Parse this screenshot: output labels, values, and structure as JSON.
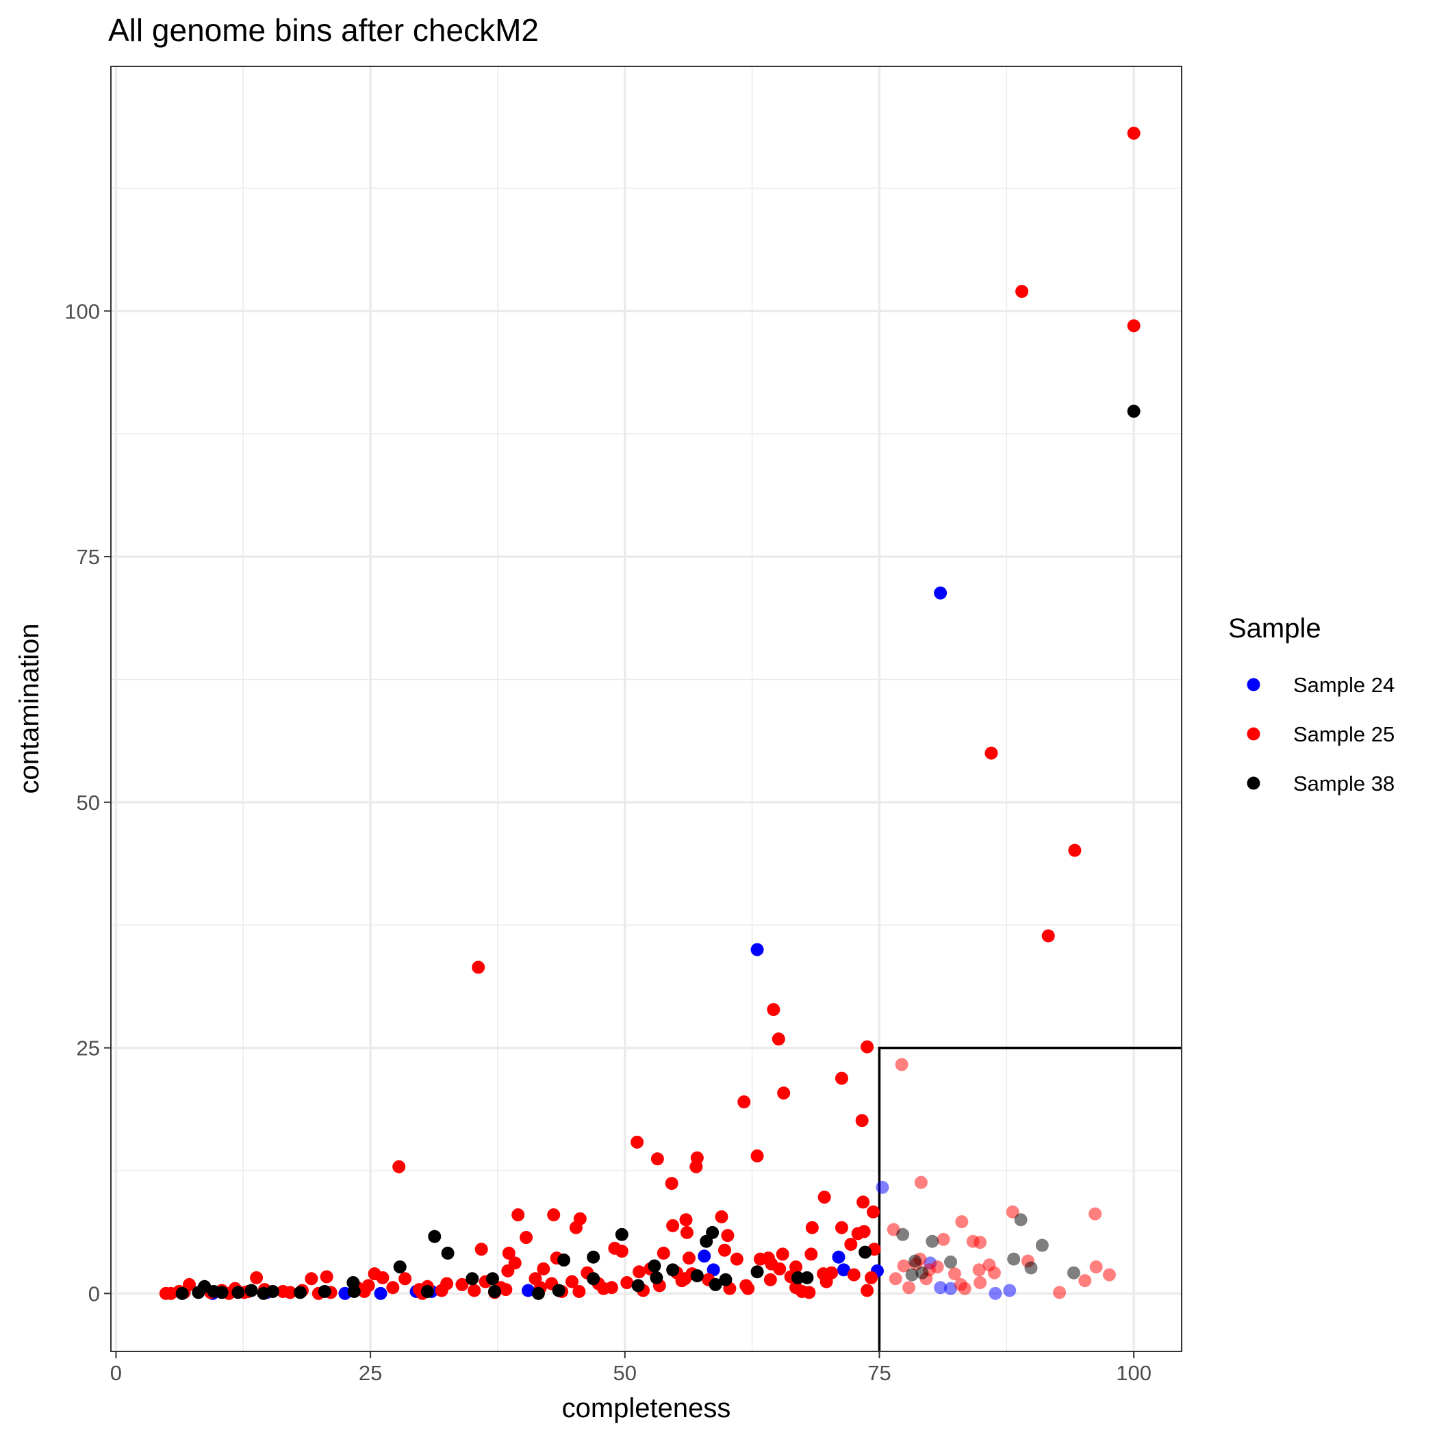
{
  "chart_data": {
    "type": "scatter",
    "title": "All genome bins after checkM2",
    "xlabel": "completeness",
    "ylabel": "contamination",
    "xlim": [
      -0.5,
      104.7
    ],
    "ylim": [
      -5.9,
      124.9
    ],
    "x_ticks": [
      0,
      25,
      50,
      75,
      100
    ],
    "x_tick_labels": [
      "0",
      "25",
      "50",
      "75",
      "100"
    ],
    "y_ticks": [
      0,
      25,
      50,
      75,
      100
    ],
    "y_tick_labels": [
      "0",
      "25",
      "50",
      "75",
      "100"
    ],
    "grid": true,
    "legend_position": "right",
    "legend": {
      "title": "Sample",
      "entries": [
        {
          "label": "Sample 24",
          "color": "#0000ff"
        },
        {
          "label": "Sample 25",
          "color": "#ff0000"
        },
        {
          "label": "Sample 38",
          "color": "#000000"
        }
      ]
    },
    "highlight_region": {
      "x": [
        75,
        104.7
      ],
      "y": [
        -5.9,
        25
      ]
    },
    "highlight_note": "points inside the box are drawn semi-transparent",
    "series": [
      {
        "name": "Sample 24",
        "color": "#0000ff",
        "points": [
          [
            81,
            71.3
          ],
          [
            63,
            35
          ],
          [
            75.3,
            10.8
          ],
          [
            71,
            3.7
          ],
          [
            71.5,
            2.4
          ],
          [
            74.8,
            2.3
          ],
          [
            57.8,
            3.8
          ],
          [
            58.7,
            2.4
          ],
          [
            80,
            3.1
          ],
          [
            81,
            0.6
          ],
          [
            86.4,
            0.0
          ],
          [
            87.8,
            0.3
          ],
          [
            82,
            0.5
          ],
          [
            40.5,
            0.3
          ],
          [
            31,
            0.2
          ],
          [
            26,
            0.0
          ],
          [
            22.5,
            0.0
          ],
          [
            14.8,
            0.1
          ],
          [
            9.5,
            0.0
          ],
          [
            29.5,
            0.2
          ]
        ]
      },
      {
        "name": "Sample 25",
        "color": "#ff0000",
        "points": [
          [
            100,
            118.1
          ],
          [
            89,
            102
          ],
          [
            100,
            98.5
          ],
          [
            86,
            55
          ],
          [
            94.2,
            45.1
          ],
          [
            91.6,
            36.4
          ],
          [
            35.6,
            33.2
          ],
          [
            64.6,
            28.9
          ],
          [
            65.1,
            25.9
          ],
          [
            73.8,
            25.1
          ],
          [
            71.3,
            21.9
          ],
          [
            65.6,
            20.4
          ],
          [
            61.7,
            19.5
          ],
          [
            77.2,
            23.3
          ],
          [
            73.3,
            17.6
          ],
          [
            51.2,
            15.4
          ],
          [
            53.2,
            13.7
          ],
          [
            57.1,
            13.8
          ],
          [
            57,
            12.9
          ],
          [
            63,
            14.0
          ],
          [
            27.8,
            12.9
          ],
          [
            54.6,
            11.2
          ],
          [
            79.1,
            11.3
          ],
          [
            69.6,
            9.8
          ],
          [
            73.4,
            9.3
          ],
          [
            74.4,
            8.3
          ],
          [
            39.5,
            8.0
          ],
          [
            43,
            8.0
          ],
          [
            45.6,
            7.6
          ],
          [
            56,
            7.5
          ],
          [
            59.5,
            7.8
          ],
          [
            88.1,
            8.3
          ],
          [
            96.2,
            8.1
          ],
          [
            83.1,
            7.3
          ],
          [
            45.2,
            6.7
          ],
          [
            54.7,
            6.9
          ],
          [
            56.1,
            6.2
          ],
          [
            60.1,
            5.9
          ],
          [
            40.3,
            5.7
          ],
          [
            68.4,
            6.7
          ],
          [
            71.3,
            6.7
          ],
          [
            72.9,
            6.1
          ],
          [
            73.5,
            6.3
          ],
          [
            76.4,
            6.5
          ],
          [
            81.3,
            5.5
          ],
          [
            84.2,
            5.3
          ],
          [
            84.9,
            5.2
          ],
          [
            72.2,
            5.0
          ],
          [
            74.5,
            4.5
          ],
          [
            35.9,
            4.5
          ],
          [
            38.6,
            4.1
          ],
          [
            43.3,
            3.6
          ],
          [
            49,
            4.6
          ],
          [
            49.7,
            4.3
          ],
          [
            53.8,
            4.1
          ],
          [
            56.3,
            3.6
          ],
          [
            59.8,
            4.4
          ],
          [
            61,
            3.5
          ],
          [
            63.3,
            3.5
          ],
          [
            64.1,
            3.6
          ],
          [
            64.4,
            3.0
          ],
          [
            65.5,
            4.0
          ],
          [
            66.8,
            2.7
          ],
          [
            68.3,
            4.0
          ],
          [
            69.5,
            2.0
          ],
          [
            70.3,
            2.1
          ],
          [
            72.5,
            1.9
          ],
          [
            74.2,
            1.6
          ],
          [
            76.6,
            1.5
          ],
          [
            77.4,
            2.8
          ],
          [
            78.6,
            3.0
          ],
          [
            79,
            3.5
          ],
          [
            79.9,
            2.4
          ],
          [
            80.7,
            2.7
          ],
          [
            82.4,
            2.0
          ],
          [
            84.8,
            2.4
          ],
          [
            85.8,
            2.9
          ],
          [
            86.3,
            2.1
          ],
          [
            89.6,
            3.3
          ],
          [
            96.3,
            2.7
          ],
          [
            97.6,
            1.9
          ],
          [
            95.2,
            1.3
          ],
          [
            84.9,
            1.1
          ],
          [
            83,
            0.9
          ],
          [
            79.6,
            1.5
          ],
          [
            77.9,
            0.6
          ],
          [
            83.4,
            0.5
          ],
          [
            92.7,
            0.1
          ],
          [
            39.2,
            3.1
          ],
          [
            38.5,
            2.3
          ],
          [
            42,
            2.5
          ],
          [
            46.3,
            2.1
          ],
          [
            51.4,
            2.2
          ],
          [
            52.5,
            2.5
          ],
          [
            55.1,
            2.1
          ],
          [
            56.6,
            2.0
          ],
          [
            58.2,
            1.4
          ],
          [
            55.6,
            1.3
          ],
          [
            50.2,
            1.1
          ],
          [
            47.4,
            1.0
          ],
          [
            42.8,
            1.0
          ],
          [
            44.8,
            1.2
          ],
          [
            41.2,
            1.5
          ],
          [
            37.8,
            0.6
          ],
          [
            36.3,
            1.2
          ],
          [
            34,
            0.9
          ],
          [
            32.5,
            1.0
          ],
          [
            30.6,
            0.7
          ],
          [
            28.4,
            1.5
          ],
          [
            26.2,
            1.6
          ],
          [
            25.4,
            2.0
          ],
          [
            24.8,
            0.8
          ],
          [
            20.7,
            1.7
          ],
          [
            19.2,
            1.5
          ],
          [
            13.8,
            1.6
          ],
          [
            11.7,
            0.5
          ],
          [
            7.2,
            0.9
          ],
          [
            8.6,
            0.5
          ],
          [
            62.1,
            0.5
          ],
          [
            60.3,
            0.5
          ],
          [
            68.1,
            0.1
          ],
          [
            67.4,
            0.2
          ],
          [
            66.8,
            0.6
          ],
          [
            64.3,
            1.4
          ],
          [
            73.8,
            0.3
          ],
          [
            51.8,
            0.3
          ],
          [
            48.7,
            0.6
          ],
          [
            45.5,
            0.2
          ],
          [
            41.7,
            0.6
          ],
          [
            38.3,
            0.4
          ],
          [
            32,
            0.3
          ],
          [
            29.8,
            0.4
          ],
          [
            27.2,
            0.6
          ],
          [
            24.4,
            0.2
          ],
          [
            21.1,
            0.1
          ],
          [
            18.3,
            0.3
          ],
          [
            16.4,
            0.2
          ],
          [
            14.6,
            0.4
          ],
          [
            12.6,
            0.1
          ],
          [
            10.4,
            0.3
          ],
          [
            9.3,
            0.1
          ],
          [
            6.7,
            0.1
          ],
          [
            5.4,
            0.0
          ],
          [
            4.9,
            0.0
          ],
          [
            6.2,
            0.2
          ],
          [
            11.1,
            0.0
          ],
          [
            13,
            0.2
          ],
          [
            17.1,
            0.1
          ],
          [
            19.9,
            0.0
          ],
          [
            23.7,
            0.6
          ],
          [
            30.1,
            0.0
          ],
          [
            35.2,
            0.3
          ],
          [
            37.2,
            0.1
          ],
          [
            43.8,
            0.2
          ],
          [
            47.9,
            0.5
          ],
          [
            53.4,
            0.8
          ],
          [
            55.9,
            1.5
          ],
          [
            61.9,
            0.8
          ],
          [
            65.2,
            2.5
          ],
          [
            66.3,
            1.7
          ],
          [
            69.8,
            1.2
          ]
        ]
      },
      {
        "name": "Sample 38",
        "color": "#000000",
        "points": [
          [
            100,
            89.8
          ],
          [
            88.9,
            7.5
          ],
          [
            77.3,
            6.0
          ],
          [
            80.2,
            5.3
          ],
          [
            91,
            4.9
          ],
          [
            82,
            3.2
          ],
          [
            78.5,
            3.3
          ],
          [
            88.2,
            3.5
          ],
          [
            89.9,
            2.6
          ],
          [
            94.1,
            2.1
          ],
          [
            78.2,
            1.9
          ],
          [
            79.2,
            2.1
          ],
          [
            31.3,
            5.8
          ],
          [
            49.7,
            6.0
          ],
          [
            58.6,
            6.2
          ],
          [
            58,
            5.3
          ],
          [
            32.6,
            4.1
          ],
          [
            44,
            3.4
          ],
          [
            46.9,
            3.7
          ],
          [
            52.9,
            2.8
          ],
          [
            54.7,
            2.4
          ],
          [
            57.1,
            1.8
          ],
          [
            53.1,
            1.6
          ],
          [
            46.9,
            1.5
          ],
          [
            37,
            1.5
          ],
          [
            35,
            1.5
          ],
          [
            27.9,
            2.7
          ],
          [
            23.3,
            1.1
          ],
          [
            63,
            2.2
          ],
          [
            67,
            1.6
          ],
          [
            67.9,
            1.6
          ],
          [
            59.9,
            1.4
          ],
          [
            73.6,
            4.2
          ],
          [
            51.3,
            0.8
          ],
          [
            58.9,
            0.9
          ],
          [
            43.5,
            0.3
          ],
          [
            41.5,
            0.0
          ],
          [
            37.2,
            0.2
          ],
          [
            30.6,
            0.2
          ],
          [
            23.4,
            0.2
          ],
          [
            20.5,
            0.2
          ],
          [
            18.1,
            0.1
          ],
          [
            15.4,
            0.2
          ],
          [
            13.3,
            0.3
          ],
          [
            12,
            0.1
          ],
          [
            10.4,
            0.1
          ],
          [
            9.6,
            0.2
          ],
          [
            8.7,
            0.7
          ],
          [
            8.1,
            0.1
          ],
          [
            6.5,
            0.0
          ],
          [
            14.5,
            0.0
          ]
        ]
      }
    ]
  }
}
